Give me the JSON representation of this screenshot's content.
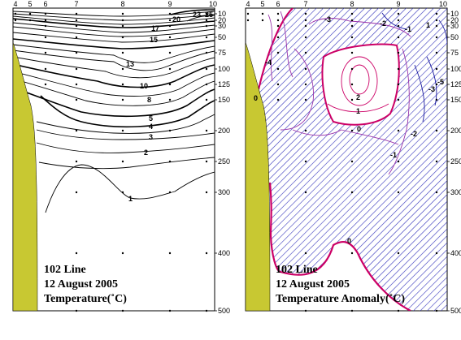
{
  "chart_data": [
    {
      "type": "contour",
      "variable": "temperature",
      "title_lines": [
        "102 Line",
        "12 August 2005",
        "Temperature(˚C)"
      ],
      "station_labels": [
        "4",
        "5",
        "6",
        "7",
        "8",
        "9",
        "10"
      ],
      "depth_ticks": [
        10,
        20,
        30,
        50,
        75,
        100,
        125,
        150,
        200,
        250,
        300,
        400,
        500
      ],
      "depth_range": [
        0,
        510
      ],
      "contour_labels": [
        "20",
        "23",
        "25",
        "17",
        "15",
        "13",
        "10",
        "8",
        "5",
        "4",
        "3",
        "2",
        "1"
      ],
      "colors": {
        "contour": "#000000",
        "land": "#c8c832"
      }
    },
    {
      "type": "contour",
      "variable": "temperature anomaly",
      "title_lines": [
        "102 Line",
        "12 August 2005",
        "Temperature Anomaly(˚C)"
      ],
      "station_labels": [
        "4",
        "5",
        "6",
        "7",
        "8",
        "9",
        "10"
      ],
      "depth_ticks": [
        10,
        20,
        30,
        50,
        75,
        100,
        125,
        150,
        200,
        250,
        300,
        400,
        500
      ],
      "depth_range": [
        0,
        510
      ],
      "contour_labels": [
        "-3",
        "-2",
        "-1",
        "-5",
        "-4",
        "0",
        "1",
        "2",
        "-3",
        "-2",
        "-1",
        "0",
        "1",
        "0"
      ],
      "colors": {
        "positive": "#cc0066",
        "negative": "#1a1aa0",
        "hatch": "#3333bb",
        "land": "#c8c832"
      }
    }
  ]
}
